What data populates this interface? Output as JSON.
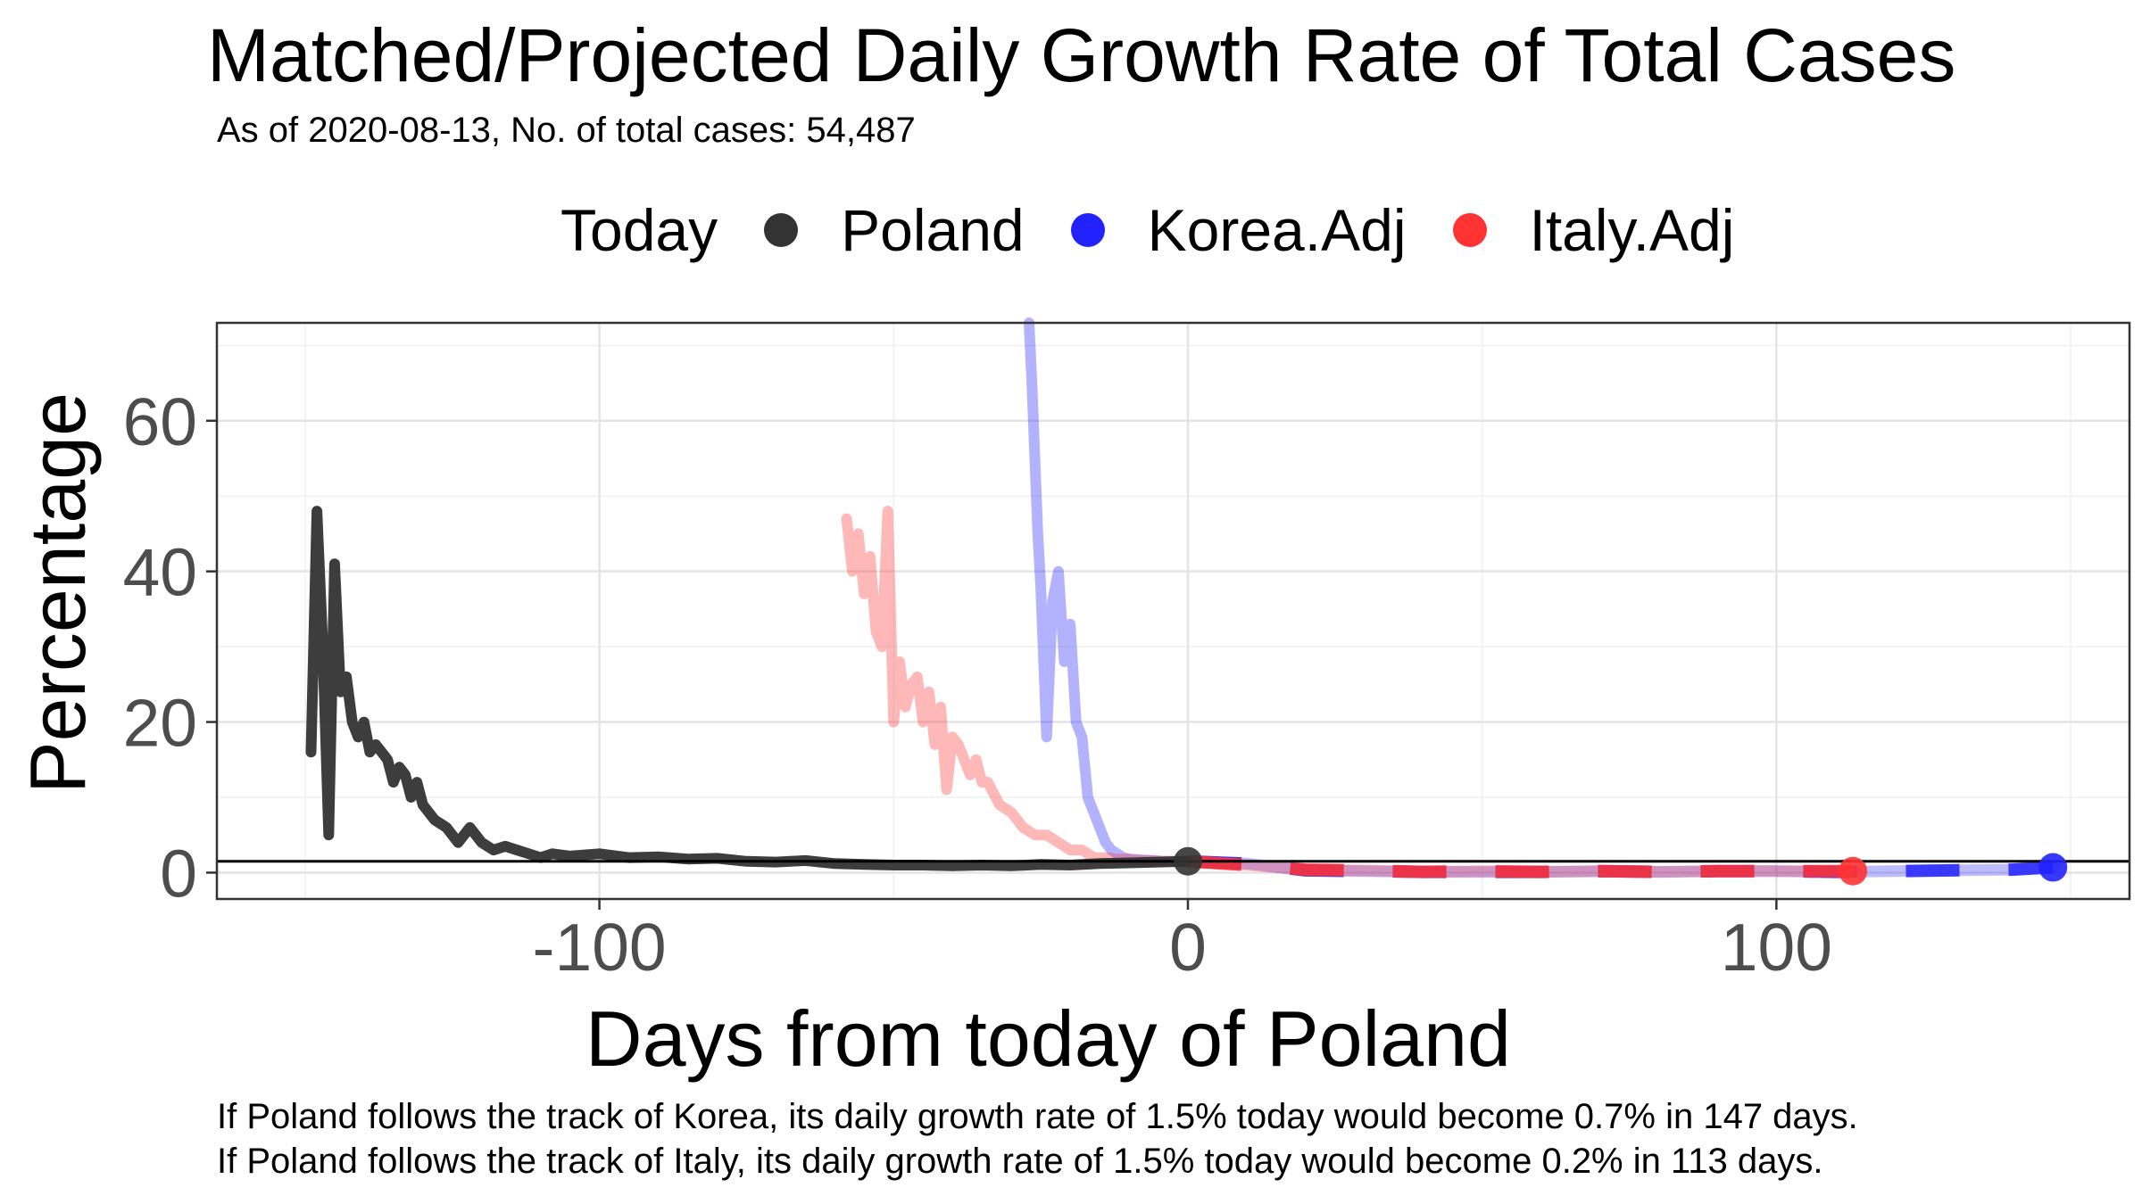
{
  "chart_data": {
    "type": "line",
    "title": "Matched/Projected Daily Growth Rate of Total Cases",
    "subtitle": "As of 2020-08-13, No. of total cases: 54,487",
    "xlabel": "Days from today of Poland",
    "ylabel": "Percentage",
    "xlim": [
      -165,
      160
    ],
    "ylim": [
      -3.5,
      73
    ],
    "x_ticks": [
      -100,
      0,
      100
    ],
    "x_tick_labels": [
      "-100",
      "0",
      "100"
    ],
    "y_ticks": [
      0,
      20,
      40,
      60
    ],
    "y_tick_labels": [
      "0",
      "20",
      "40",
      "60"
    ],
    "grid": true,
    "legend": {
      "title": "Today",
      "position": "top",
      "entries": [
        {
          "label": "Poland",
          "color": "#333333"
        },
        {
          "label": "Korea.Adj",
          "color": "#2222ff"
        },
        {
          "label": "Italy.Adj",
          "color": "#ff3333"
        }
      ]
    },
    "reference_line": {
      "y": 1.5,
      "color": "#000000"
    },
    "series": [
      {
        "name": "Poland",
        "color": "#333333",
        "style": "solid",
        "x": [
          -149,
          -148,
          -147,
          -146,
          -145,
          -144,
          -143,
          -142,
          -141,
          -140,
          -139,
          -138,
          -137,
          -136,
          -135,
          -134,
          -133,
          -132,
          -131,
          -130,
          -128,
          -126,
          -124,
          -122,
          -120,
          -118,
          -116,
          -114,
          -112,
          -110,
          -108,
          -105,
          -100,
          -95,
          -90,
          -85,
          -80,
          -75,
          -70,
          -65,
          -60,
          -55,
          -50,
          -45,
          -40,
          -35,
          -30,
          -25,
          -20,
          -15,
          -10,
          -5,
          0
        ],
        "y": [
          16,
          48,
          30,
          5,
          41,
          24,
          26,
          20,
          18,
          20,
          16,
          17,
          16,
          15,
          12,
          14,
          13,
          10,
          12,
          9,
          7,
          6,
          4,
          6,
          4,
          3,
          3.5,
          3,
          2.5,
          2,
          2.5,
          2.2,
          2.5,
          2,
          2.1,
          1.8,
          1.9,
          1.5,
          1.4,
          1.6,
          1.2,
          1.1,
          1.0,
          1.0,
          0.9,
          1.0,
          0.9,
          1.1,
          1.0,
          1.2,
          1.3,
          1.4,
          1.5
        ]
      },
      {
        "name": "",
        "color": "#2222ff",
        "style": "faded-past",
        "x": [
          -27,
          -26.5,
          -26,
          -25.5,
          -25,
          -24,
          -23,
          -22,
          -21,
          -20,
          -19,
          -18,
          -17,
          -16,
          -15,
          -14,
          -13,
          -12,
          -11,
          -10,
          -8,
          -6,
          -4,
          -2,
          0
        ],
        "y": [
          73,
          65,
          55,
          45,
          38,
          18,
          36,
          40,
          28,
          33,
          20,
          18,
          10,
          8,
          6,
          4,
          3,
          2.5,
          2,
          1.8,
          1.7,
          1.6,
          1.5,
          1.5,
          1.5
        ]
      },
      {
        "name": "Korea.Adj",
        "color": "#2222ff",
        "style": "projection",
        "x": [
          0,
          10,
          20,
          30,
          40,
          50,
          60,
          70,
          80,
          90,
          100,
          110,
          120,
          130,
          140,
          147
        ],
        "y": [
          1.5,
          1.2,
          0.3,
          0.2,
          0.1,
          0.1,
          0.1,
          0.2,
          0.1,
          0.2,
          0.2,
          0.1,
          0.2,
          0.3,
          0.4,
          0.7
        ]
      },
      {
        "name": "",
        "color": "#ff3333",
        "style": "faded-past",
        "x": [
          -58,
          -57,
          -56,
          -55,
          -54,
          -53,
          -52,
          -51,
          -50,
          -49,
          -48,
          -47,
          -46,
          -45,
          -44,
          -43,
          -42,
          -41,
          -40,
          -39,
          -38,
          -37,
          -36,
          -35,
          -34,
          -32,
          -30,
          -28,
          -26,
          -24,
          -22,
          -20,
          -18,
          -16,
          -14,
          -12,
          -10,
          -8,
          -6,
          -4,
          -2,
          0
        ],
        "y": [
          47,
          40,
          45,
          37,
          42,
          32,
          30,
          48,
          20,
          28,
          22,
          25,
          26,
          20,
          24,
          17,
          22,
          11,
          18,
          17,
          15,
          13,
          15,
          12,
          12,
          9,
          8,
          6,
          5,
          5,
          4,
          3,
          3,
          2,
          2,
          1.8,
          1.8,
          1.6,
          1.6,
          1.5,
          1.5,
          1.5
        ]
      },
      {
        "name": "Italy.Adj",
        "color": "#ff3333",
        "style": "projection",
        "x": [
          0,
          10,
          20,
          30,
          40,
          50,
          60,
          70,
          80,
          90,
          100,
          113
        ],
        "y": [
          1.5,
          1.0,
          0.4,
          0.3,
          0.1,
          0.2,
          0.1,
          0.2,
          0.1,
          0.2,
          0.2,
          0.2
        ]
      }
    ]
  },
  "captions": [
    "If Poland follows the track of Korea, its daily growth rate of 1.5% today would become 0.7% in 147 days.",
    "If Poland follows the track of Italy, its daily growth rate of 1.5% today would become 0.2% in 113 days."
  ]
}
